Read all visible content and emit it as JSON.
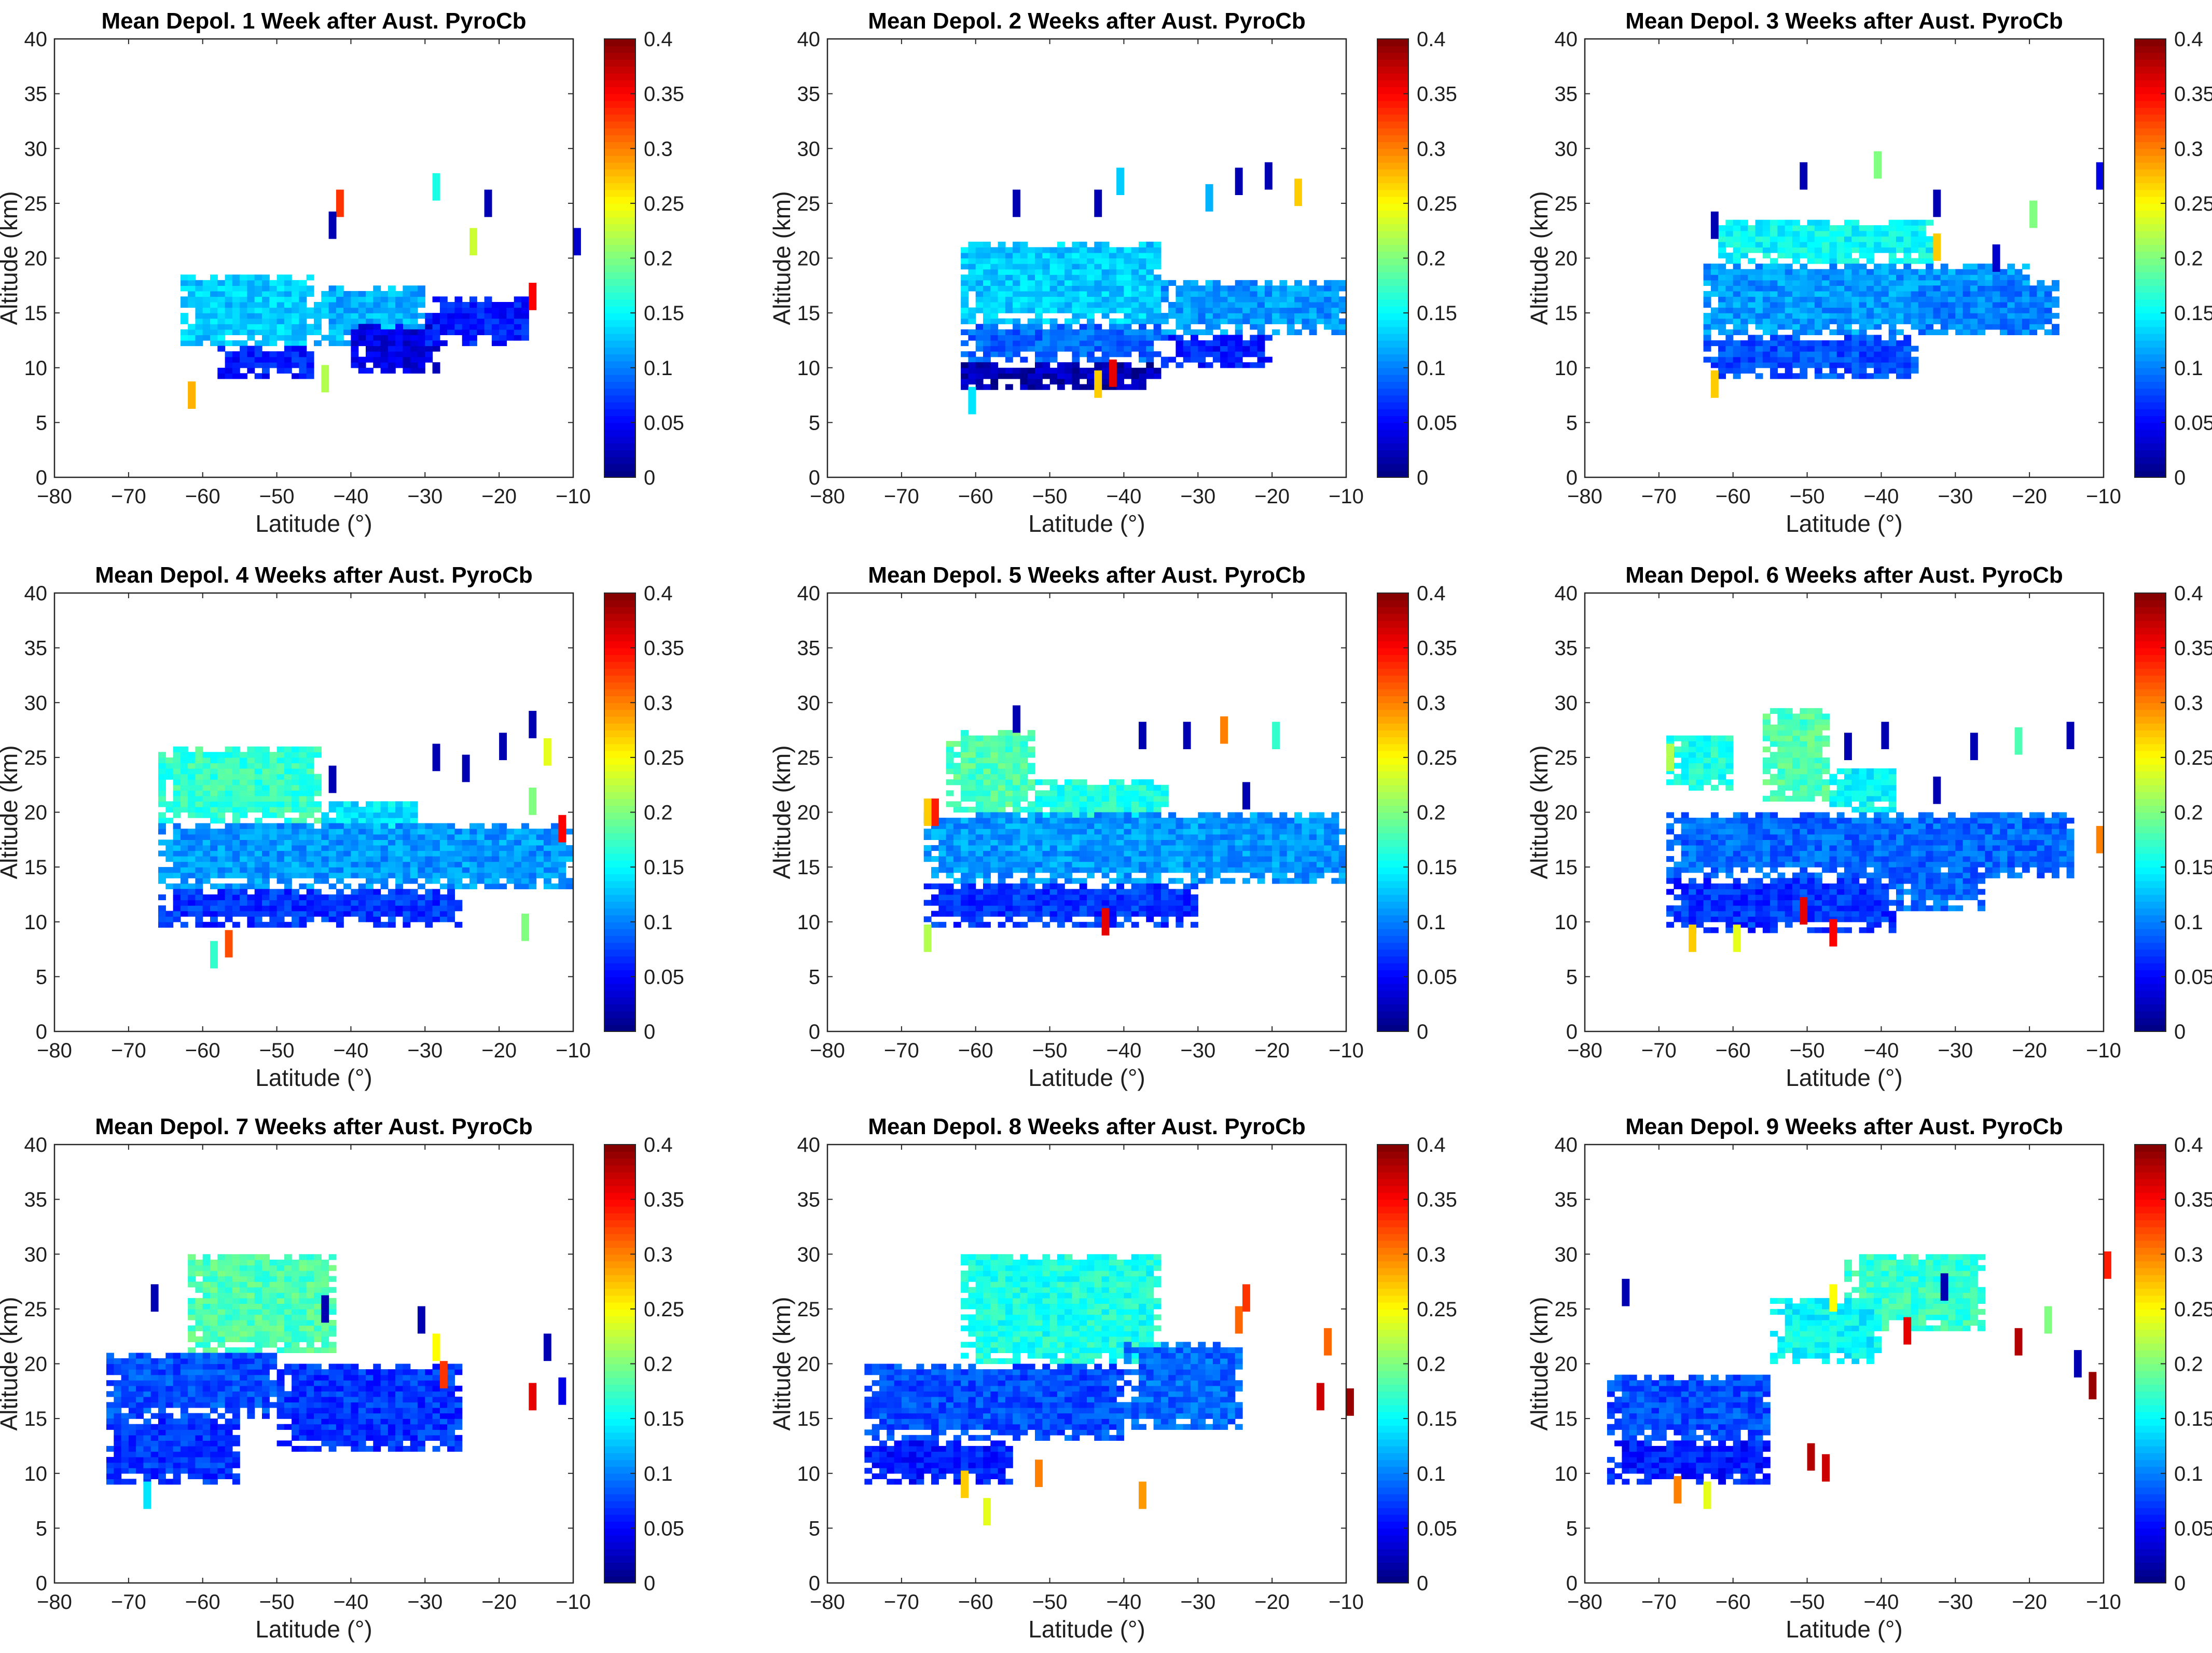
{
  "chart_data": {
    "type": "heatmap",
    "figure_description": "Nine panels of mean depolarization ratio vs latitude and altitude",
    "xlabel": "Latitude (°)",
    "ylabel": "Altitude (km)",
    "xlim": [
      -80,
      -10
    ],
    "ylim": [
      0,
      40
    ],
    "xticks": [
      -80,
      -70,
      -60,
      -50,
      -40,
      -30,
      -20,
      -10
    ],
    "yticks": [
      0,
      5,
      10,
      15,
      20,
      25,
      30,
      35,
      40
    ],
    "colorbar": {
      "range": [
        0,
        0.4
      ],
      "ticks": [
        0,
        0.05,
        0.1,
        0.15,
        0.2,
        0.25,
        0.3,
        0.35,
        0.4
      ],
      "colormap": "jet"
    },
    "panels": [
      {
        "title": "Mean Depol. 1 Week after Aust. PyroCb",
        "regions": [
          {
            "lat": [
              -63,
              -45
            ],
            "alt": [
              12,
              18.5
            ],
            "value": 0.13
          },
          {
            "lat": [
              -45,
              -30
            ],
            "alt": [
              12,
              17.5
            ],
            "value": 0.12
          },
          {
            "lat": [
              -58,
              -45
            ],
            "alt": [
              9,
              12
            ],
            "value": 0.06
          },
          {
            "lat": [
              -40,
              -28
            ],
            "alt": [
              9.5,
              14
            ],
            "value": 0.04
          },
          {
            "lat": [
              -30,
              -16
            ],
            "alt": [
              12,
              16.5
            ],
            "value": 0.06
          }
        ],
        "isolated_cells": [
          {
            "lat": -62,
            "alt": 7.5,
            "value": 0.28
          },
          {
            "lat": -42,
            "alt": 25,
            "value": 0.33
          },
          {
            "lat": -43,
            "alt": 23,
            "value": 0.02
          },
          {
            "lat": -29,
            "alt": 26.5,
            "value": 0.16
          },
          {
            "lat": -24,
            "alt": 21.5,
            "value": 0.23
          },
          {
            "lat": -22,
            "alt": 25,
            "value": 0.02
          },
          {
            "lat": -16,
            "alt": 16.5,
            "value": 0.35
          },
          {
            "lat": -10,
            "alt": 21.5,
            "value": 0.03
          },
          {
            "lat": -44,
            "alt": 9,
            "value": 0.22
          }
        ]
      },
      {
        "title": "Mean Depol. 2 Weeks after Aust. PyroCb",
        "regions": [
          {
            "lat": [
              -62,
              -35
            ],
            "alt": [
              14,
              21.5
            ],
            "value": 0.13
          },
          {
            "lat": [
              -35,
              -10
            ],
            "alt": [
              13,
              18
            ],
            "value": 0.11
          },
          {
            "lat": [
              -62,
              -35
            ],
            "alt": [
              10.5,
              14
            ],
            "value": 0.09
          },
          {
            "lat": [
              -62,
              -35
            ],
            "alt": [
              8,
              10.5
            ],
            "value": 0.02
          },
          {
            "lat": [
              -35,
              -20
            ],
            "alt": [
              10,
              13
            ],
            "value": 0.06
          }
        ],
        "isolated_cells": [
          {
            "lat": -55,
            "alt": 25,
            "value": 0.02
          },
          {
            "lat": -44,
            "alt": 25,
            "value": 0.02
          },
          {
            "lat": -41,
            "alt": 27,
            "value": 0.13
          },
          {
            "lat": -29,
            "alt": 25.5,
            "value": 0.12
          },
          {
            "lat": -25,
            "alt": 27,
            "value": 0.02
          },
          {
            "lat": -21,
            "alt": 27.5,
            "value": 0.02
          },
          {
            "lat": -17,
            "alt": 26,
            "value": 0.27
          },
          {
            "lat": -42,
            "alt": 9.5,
            "value": 0.36
          },
          {
            "lat": -44,
            "alt": 8.5,
            "value": 0.27
          },
          {
            "lat": -61,
            "alt": 7,
            "value": 0.14
          }
        ]
      },
      {
        "title": "Mean Depol. 3 Weeks after Aust. PyroCb",
        "regions": [
          {
            "lat": [
              -62,
              -33
            ],
            "alt": [
              19.5,
              23.5
            ],
            "value": 0.15
          },
          {
            "lat": [
              -64,
              -20
            ],
            "alt": [
              13,
              19.5
            ],
            "value": 0.11
          },
          {
            "lat": [
              -64,
              -35
            ],
            "alt": [
              9,
              13
            ],
            "value": 0.08
          },
          {
            "lat": [
              -35,
              -16
            ],
            "alt": [
              13,
              18
            ],
            "value": 0.1
          }
        ],
        "isolated_cells": [
          {
            "lat": -63,
            "alt": 23,
            "value": 0.02
          },
          {
            "lat": -51,
            "alt": 27.5,
            "value": 0.02
          },
          {
            "lat": -41,
            "alt": 28.5,
            "value": 0.2
          },
          {
            "lat": -33,
            "alt": 25,
            "value": 0.02
          },
          {
            "lat": -33,
            "alt": 21,
            "value": 0.27
          },
          {
            "lat": -25,
            "alt": 20,
            "value": 0.03
          },
          {
            "lat": -20,
            "alt": 24,
            "value": 0.2
          },
          {
            "lat": -11,
            "alt": 27.5,
            "value": 0.04
          },
          {
            "lat": -63,
            "alt": 8.5,
            "value": 0.27
          }
        ]
      },
      {
        "title": "Mean Depol. 4 Weeks after Aust. PyroCb",
        "regions": [
          {
            "lat": [
              -66,
              -44
            ],
            "alt": [
              19,
              26
            ],
            "value": 0.17
          },
          {
            "lat": [
              -44,
              -30
            ],
            "alt": [
              17,
              21
            ],
            "value": 0.14
          },
          {
            "lat": [
              -66,
              -10
            ],
            "alt": [
              13,
              19
            ],
            "value": 0.11
          },
          {
            "lat": [
              -66,
              -25
            ],
            "alt": [
              9.5,
              13
            ],
            "value": 0.07
          }
        ],
        "isolated_cells": [
          {
            "lat": -43,
            "alt": 23,
            "value": 0.02
          },
          {
            "lat": -29,
            "alt": 25,
            "value": 0.02
          },
          {
            "lat": -25,
            "alt": 24,
            "value": 0.02
          },
          {
            "lat": -20,
            "alt": 26,
            "value": 0.02
          },
          {
            "lat": -16,
            "alt": 28,
            "value": 0.02
          },
          {
            "lat": -14,
            "alt": 25.5,
            "value": 0.24
          },
          {
            "lat": -16,
            "alt": 21,
            "value": 0.2
          },
          {
            "lat": -12,
            "alt": 18.5,
            "value": 0.35
          },
          {
            "lat": -57,
            "alt": 8,
            "value": 0.32
          },
          {
            "lat": -59,
            "alt": 7,
            "value": 0.17
          },
          {
            "lat": -17,
            "alt": 9.5,
            "value": 0.2
          }
        ]
      },
      {
        "title": "Mean Depol. 5 Weeks after Aust. PyroCb",
        "regions": [
          {
            "lat": [
              -64,
              -52
            ],
            "alt": [
              20,
              27.5
            ],
            "value": 0.18
          },
          {
            "lat": [
              -52,
              -34
            ],
            "alt": [
              18,
              23
            ],
            "value": 0.16
          },
          {
            "lat": [
              -67,
              -10
            ],
            "alt": [
              13.5,
              20
            ],
            "value": 0.11
          },
          {
            "lat": [
              -67,
              -30
            ],
            "alt": [
              9.5,
              13.5
            ],
            "value": 0.07
          }
        ],
        "isolated_cells": [
          {
            "lat": -66,
            "alt": 20,
            "value": 0.34
          },
          {
            "lat": -67,
            "alt": 20,
            "value": 0.27
          },
          {
            "lat": -55,
            "alt": 28.5,
            "value": 0.02
          },
          {
            "lat": -38,
            "alt": 27,
            "value": 0.02
          },
          {
            "lat": -32,
            "alt": 27,
            "value": 0.02
          },
          {
            "lat": -27,
            "alt": 27.5,
            "value": 0.3
          },
          {
            "lat": -24,
            "alt": 21.5,
            "value": 0.02
          },
          {
            "lat": -20,
            "alt": 27,
            "value": 0.17
          },
          {
            "lat": -43,
            "alt": 10,
            "value": 0.36
          },
          {
            "lat": -67,
            "alt": 8.5,
            "value": 0.22
          }
        ]
      },
      {
        "title": "Mean Depol. 6 Weeks after Aust. PyroCb",
        "regions": [
          {
            "lat": [
              -69,
              -60
            ],
            "alt": [
              22,
              27
            ],
            "value": 0.16
          },
          {
            "lat": [
              -56,
              -47
            ],
            "alt": [
              21,
              29.5
            ],
            "value": 0.18
          },
          {
            "lat": [
              -47,
              -38
            ],
            "alt": [
              20,
              24
            ],
            "value": 0.15
          },
          {
            "lat": [
              -69,
              -14
            ],
            "alt": [
              14,
              20
            ],
            "value": 0.09
          },
          {
            "lat": [
              -69,
              -38
            ],
            "alt": [
              9,
              14
            ],
            "value": 0.07
          },
          {
            "lat": [
              -38,
              -26
            ],
            "alt": [
              11,
              15
            ],
            "value": 0.09
          }
        ],
        "isolated_cells": [
          {
            "lat": -69,
            "alt": 25,
            "value": 0.22
          },
          {
            "lat": -45,
            "alt": 26,
            "value": 0.02
          },
          {
            "lat": -40,
            "alt": 27,
            "value": 0.02
          },
          {
            "lat": -33,
            "alt": 22,
            "value": 0.02
          },
          {
            "lat": -28,
            "alt": 26,
            "value": 0.02
          },
          {
            "lat": -22,
            "alt": 26.5,
            "value": 0.18
          },
          {
            "lat": -15,
            "alt": 27,
            "value": 0.02
          },
          {
            "lat": -11,
            "alt": 17.5,
            "value": 0.3
          },
          {
            "lat": -51,
            "alt": 11,
            "value": 0.36
          },
          {
            "lat": -47,
            "alt": 9,
            "value": 0.35
          },
          {
            "lat": -60,
            "alt": 8.5,
            "value": 0.24
          },
          {
            "lat": -66,
            "alt": 8.5,
            "value": 0.27
          }
        ]
      },
      {
        "title": "Mean Depol. 7 Weeks after Aust. PyroCb",
        "regions": [
          {
            "lat": [
              -62,
              -42
            ],
            "alt": [
              21,
              30
            ],
            "value": 0.18
          },
          {
            "lat": [
              -73,
              -50
            ],
            "alt": [
              15,
              21
            ],
            "value": 0.08
          },
          {
            "lat": [
              -73,
              -55
            ],
            "alt": [
              9,
              15
            ],
            "value": 0.07
          },
          {
            "lat": [
              -50,
              -25
            ],
            "alt": [
              12,
              20
            ],
            "value": 0.07
          }
        ],
        "isolated_cells": [
          {
            "lat": -67,
            "alt": 26,
            "value": 0.02
          },
          {
            "lat": -44,
            "alt": 25,
            "value": 0.02
          },
          {
            "lat": -31,
            "alt": 24,
            "value": 0.02
          },
          {
            "lat": -29,
            "alt": 21.5,
            "value": 0.25
          },
          {
            "lat": -28,
            "alt": 19,
            "value": 0.33
          },
          {
            "lat": -14,
            "alt": 21.5,
            "value": 0.02
          },
          {
            "lat": -16,
            "alt": 17,
            "value": 0.36
          },
          {
            "lat": -12,
            "alt": 17.5,
            "value": 0.04
          },
          {
            "lat": -68,
            "alt": 8,
            "value": 0.14
          }
        ]
      },
      {
        "title": "Mean Depol. 8 Weeks after Aust. PyroCb",
        "regions": [
          {
            "lat": [
              -62,
              -35
            ],
            "alt": [
              20,
              30
            ],
            "value": 0.16
          },
          {
            "lat": [
              -75,
              -40
            ],
            "alt": [
              13,
              20
            ],
            "value": 0.08
          },
          {
            "lat": [
              -75,
              -55
            ],
            "alt": [
              9,
              13
            ],
            "value": 0.06
          },
          {
            "lat": [
              -40,
              -24
            ],
            "alt": [
              14,
              22
            ],
            "value": 0.09
          }
        ],
        "isolated_cells": [
          {
            "lat": -25,
            "alt": 24,
            "value": 0.31
          },
          {
            "lat": -24,
            "alt": 26,
            "value": 0.33
          },
          {
            "lat": -13,
            "alt": 22,
            "value": 0.31
          },
          {
            "lat": -10,
            "alt": 16.5,
            "value": 0.39
          },
          {
            "lat": -14,
            "alt": 17,
            "value": 0.37
          },
          {
            "lat": -38,
            "alt": 8,
            "value": 0.29
          },
          {
            "lat": -52,
            "alt": 10,
            "value": 0.3
          },
          {
            "lat": -62,
            "alt": 9,
            "value": 0.27
          },
          {
            "lat": -59,
            "alt": 6.5,
            "value": 0.24
          }
        ]
      },
      {
        "title": "Mean Depol. 9 Weeks after Aust. PyroCb",
        "regions": [
          {
            "lat": [
              -45,
              -26
            ],
            "alt": [
              23,
              30
            ],
            "value": 0.17
          },
          {
            "lat": [
              -55,
              -40
            ],
            "alt": [
              20,
              26
            ],
            "value": 0.15
          },
          {
            "lat": [
              -77,
              -55
            ],
            "alt": [
              13,
              19
            ],
            "value": 0.08
          },
          {
            "lat": [
              -77,
              -55
            ],
            "alt": [
              9,
              13
            ],
            "value": 0.06
          }
        ],
        "isolated_cells": [
          {
            "lat": -75,
            "alt": 26.5,
            "value": 0.02
          },
          {
            "lat": -47,
            "alt": 26,
            "value": 0.25
          },
          {
            "lat": -37,
            "alt": 23,
            "value": 0.36
          },
          {
            "lat": -32,
            "alt": 27,
            "value": 0.02
          },
          {
            "lat": -22,
            "alt": 22,
            "value": 0.38
          },
          {
            "lat": -18,
            "alt": 24,
            "value": 0.2
          },
          {
            "lat": -14,
            "alt": 20,
            "value": 0.02
          },
          {
            "lat": -12,
            "alt": 18,
            "value": 0.39
          },
          {
            "lat": -10,
            "alt": 29,
            "value": 0.34
          },
          {
            "lat": -50,
            "alt": 11.5,
            "value": 0.38
          },
          {
            "lat": -48,
            "alt": 10.5,
            "value": 0.37
          },
          {
            "lat": -68,
            "alt": 8.5,
            "value": 0.3
          },
          {
            "lat": -64,
            "alt": 8,
            "value": 0.24
          }
        ]
      }
    ]
  }
}
